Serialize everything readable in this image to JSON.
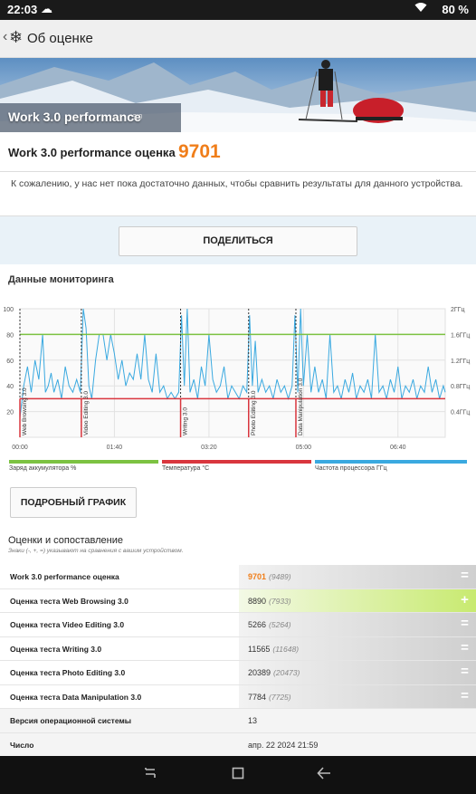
{
  "status_bar": {
    "time": "22:03",
    "battery": "80 %",
    "cloud_icon": "cloud-icon",
    "wifi_icon": "wifi-icon"
  },
  "app_bar": {
    "title": "Об оценке",
    "back_icon": "back-chevron-icon",
    "logo_icon": "snowflake-icon"
  },
  "hero": {
    "title": "Work 3.0 performance",
    "version": "3.0"
  },
  "score": {
    "label": "Work 3.0 performance оценка",
    "value": "9701"
  },
  "note": "К сожалению, у нас нет пока достаточно данных, чтобы сравнить результаты для данного устройства.",
  "share_button": "ПОДЕЛИТЬСЯ",
  "monitoring": {
    "title": "Данные мониторинга",
    "legend": [
      {
        "label": "Заряд аккумулятора %",
        "color": "#7cc242"
      },
      {
        "label": "Температура °C",
        "color": "#d9363e"
      },
      {
        "label": "Частота процессора ГГц",
        "color": "#3aa9e0"
      }
    ]
  },
  "chart_data": {
    "type": "line",
    "x_ticks": [
      "00:00",
      "01:40",
      "03:20",
      "05:00",
      "06:40"
    ],
    "y_left_ticks": [
      "100",
      "80",
      "60",
      "40",
      "20"
    ],
    "y_right_ticks": [
      "2ГГц",
      "1.6ГГц",
      "1.2ГГц",
      "0.8ГГц",
      "0.4ГГц"
    ],
    "ylim_left": [
      0,
      100
    ],
    "ylim_right_ghz": [
      0,
      2.0
    ],
    "xlim_minutes": [
      0,
      450
    ],
    "section_markers": [
      {
        "label": "Web Browsing 3.0",
        "t": 0
      },
      {
        "label": "Video Editing 3.0",
        "t": 65
      },
      {
        "label": "Writing 3.0",
        "t": 170
      },
      {
        "label": "Photo Editing 3.0",
        "t": 242
      },
      {
        "label": "Data Manipulation 3.0",
        "t": 292
      }
    ],
    "series": [
      {
        "name": "Заряд аккумулятора %",
        "axis": "left",
        "values": [
          [
            0,
            80
          ],
          [
            450,
            80
          ]
        ]
      },
      {
        "name": "Температура °C",
        "axis": "left",
        "values": [
          [
            0,
            30
          ],
          [
            450,
            30
          ]
        ]
      },
      {
        "name": "Частота процессора ГГц",
        "axis": "right",
        "values": [
          [
            0,
            0.3
          ],
          [
            4,
            0.8
          ],
          [
            8,
            1.1
          ],
          [
            12,
            0.7
          ],
          [
            16,
            1.2
          ],
          [
            20,
            0.9
          ],
          [
            24,
            1.6
          ],
          [
            27,
            0.7
          ],
          [
            30,
            0.8
          ],
          [
            33,
            1.0
          ],
          [
            36,
            0.7
          ],
          [
            40,
            0.9
          ],
          [
            44,
            0.6
          ],
          [
            48,
            1.1
          ],
          [
            52,
            0.8
          ],
          [
            56,
            0.7
          ],
          [
            60,
            0.9
          ],
          [
            64,
            0.7
          ],
          [
            67,
            2.0
          ],
          [
            70,
            1.7
          ],
          [
            73,
            0.8
          ],
          [
            76,
            0.6
          ],
          [
            80,
            1.2
          ],
          [
            84,
            1.6
          ],
          [
            88,
            1.6
          ],
          [
            92,
            1.2
          ],
          [
            96,
            1.6
          ],
          [
            100,
            1.3
          ],
          [
            104,
            0.9
          ],
          [
            108,
            1.2
          ],
          [
            112,
            0.8
          ],
          [
            116,
            1.0
          ],
          [
            120,
            0.9
          ],
          [
            124,
            1.3
          ],
          [
            128,
            0.9
          ],
          [
            132,
            1.6
          ],
          [
            136,
            0.9
          ],
          [
            140,
            0.7
          ],
          [
            144,
            1.3
          ],
          [
            148,
            0.7
          ],
          [
            152,
            0.8
          ],
          [
            156,
            0.6
          ],
          [
            160,
            0.7
          ],
          [
            164,
            0.6
          ],
          [
            168,
            0.7
          ],
          [
            171,
            1.9
          ],
          [
            174,
            0.8
          ],
          [
            177,
            2.0
          ],
          [
            180,
            0.7
          ],
          [
            184,
            0.9
          ],
          [
            188,
            0.6
          ],
          [
            192,
            1.1
          ],
          [
            196,
            0.8
          ],
          [
            200,
            1.6
          ],
          [
            204,
            0.9
          ],
          [
            208,
            0.7
          ],
          [
            212,
            0.8
          ],
          [
            216,
            1.1
          ],
          [
            220,
            0.6
          ],
          [
            224,
            0.8
          ],
          [
            228,
            0.7
          ],
          [
            232,
            0.6
          ],
          [
            236,
            0.8
          ],
          [
            240,
            0.7
          ],
          [
            243,
            1.9
          ],
          [
            246,
            0.8
          ],
          [
            249,
            1.5
          ],
          [
            252,
            0.7
          ],
          [
            256,
            0.9
          ],
          [
            260,
            0.7
          ],
          [
            264,
            0.8
          ],
          [
            268,
            0.6
          ],
          [
            272,
            0.9
          ],
          [
            276,
            0.7
          ],
          [
            280,
            0.8
          ],
          [
            284,
            0.6
          ],
          [
            288,
            0.8
          ],
          [
            291,
            1.9
          ],
          [
            294,
            0.7
          ],
          [
            297,
            2.0
          ],
          [
            300,
            0.8
          ],
          [
            304,
            1.6
          ],
          [
            308,
            0.7
          ],
          [
            312,
            1.1
          ],
          [
            316,
            0.7
          ],
          [
            320,
            0.9
          ],
          [
            324,
            0.6
          ],
          [
            328,
            1.6
          ],
          [
            332,
            0.7
          ],
          [
            336,
            0.8
          ],
          [
            340,
            0.6
          ],
          [
            344,
            0.9
          ],
          [
            348,
            0.7
          ],
          [
            352,
            1.0
          ],
          [
            356,
            0.6
          ],
          [
            360,
            0.8
          ],
          [
            364,
            0.7
          ],
          [
            368,
            0.9
          ],
          [
            372,
            0.6
          ],
          [
            376,
            1.6
          ],
          [
            380,
            0.7
          ],
          [
            384,
            0.8
          ],
          [
            388,
            0.6
          ],
          [
            392,
            0.9
          ],
          [
            396,
            0.7
          ],
          [
            400,
            1.1
          ],
          [
            404,
            0.6
          ],
          [
            408,
            0.8
          ],
          [
            412,
            0.7
          ],
          [
            416,
            0.9
          ],
          [
            420,
            0.6
          ],
          [
            424,
            0.8
          ],
          [
            428,
            0.7
          ],
          [
            432,
            1.1
          ],
          [
            436,
            0.7
          ],
          [
            440,
            0.9
          ],
          [
            444,
            0.6
          ],
          [
            448,
            0.8
          ],
          [
            450,
            0.7
          ]
        ]
      }
    ]
  },
  "detail_button": "ПОДРОБНЫЙ ГРАФИК",
  "comparison": {
    "title": "Оценки и сопоставление",
    "subtitle": "Знаки (-, +, =) указывают на сравнения с вашим устройством.",
    "rows": [
      {
        "label": "Work 3.0 performance оценка",
        "value": "9701",
        "ref": "(9489)",
        "sign": "=",
        "style": "grad",
        "orange": true
      },
      {
        "label": "Оценка теста Web Browsing 3.0",
        "value": "8890",
        "ref": "(7933)",
        "sign": "+",
        "style": "grad-green",
        "orange": false
      },
      {
        "label": "Оценка теста Video Editing 3.0",
        "value": "5266",
        "ref": "(5264)",
        "sign": "=",
        "style": "grad",
        "orange": false
      },
      {
        "label": "Оценка теста Writing 3.0",
        "value": "11565",
        "ref": "(11648)",
        "sign": "=",
        "style": "grad",
        "orange": false
      },
      {
        "label": "Оценка теста Photo Editing 3.0",
        "value": "20389",
        "ref": "(20473)",
        "sign": "=",
        "style": "grad",
        "orange": false
      },
      {
        "label": "Оценка теста Data Manipulation 3.0",
        "value": "7784",
        "ref": "(7725)",
        "sign": "=",
        "style": "grad",
        "orange": false
      }
    ],
    "meta": [
      {
        "label": "Версия операционной системы",
        "value": "13"
      },
      {
        "label": "Число",
        "value": "апр. 22 2024 21:59"
      }
    ]
  },
  "nav_bar": {
    "recents_icon": "recents-icon",
    "home_icon": "home-icon",
    "back_icon": "back-arrow-icon"
  }
}
